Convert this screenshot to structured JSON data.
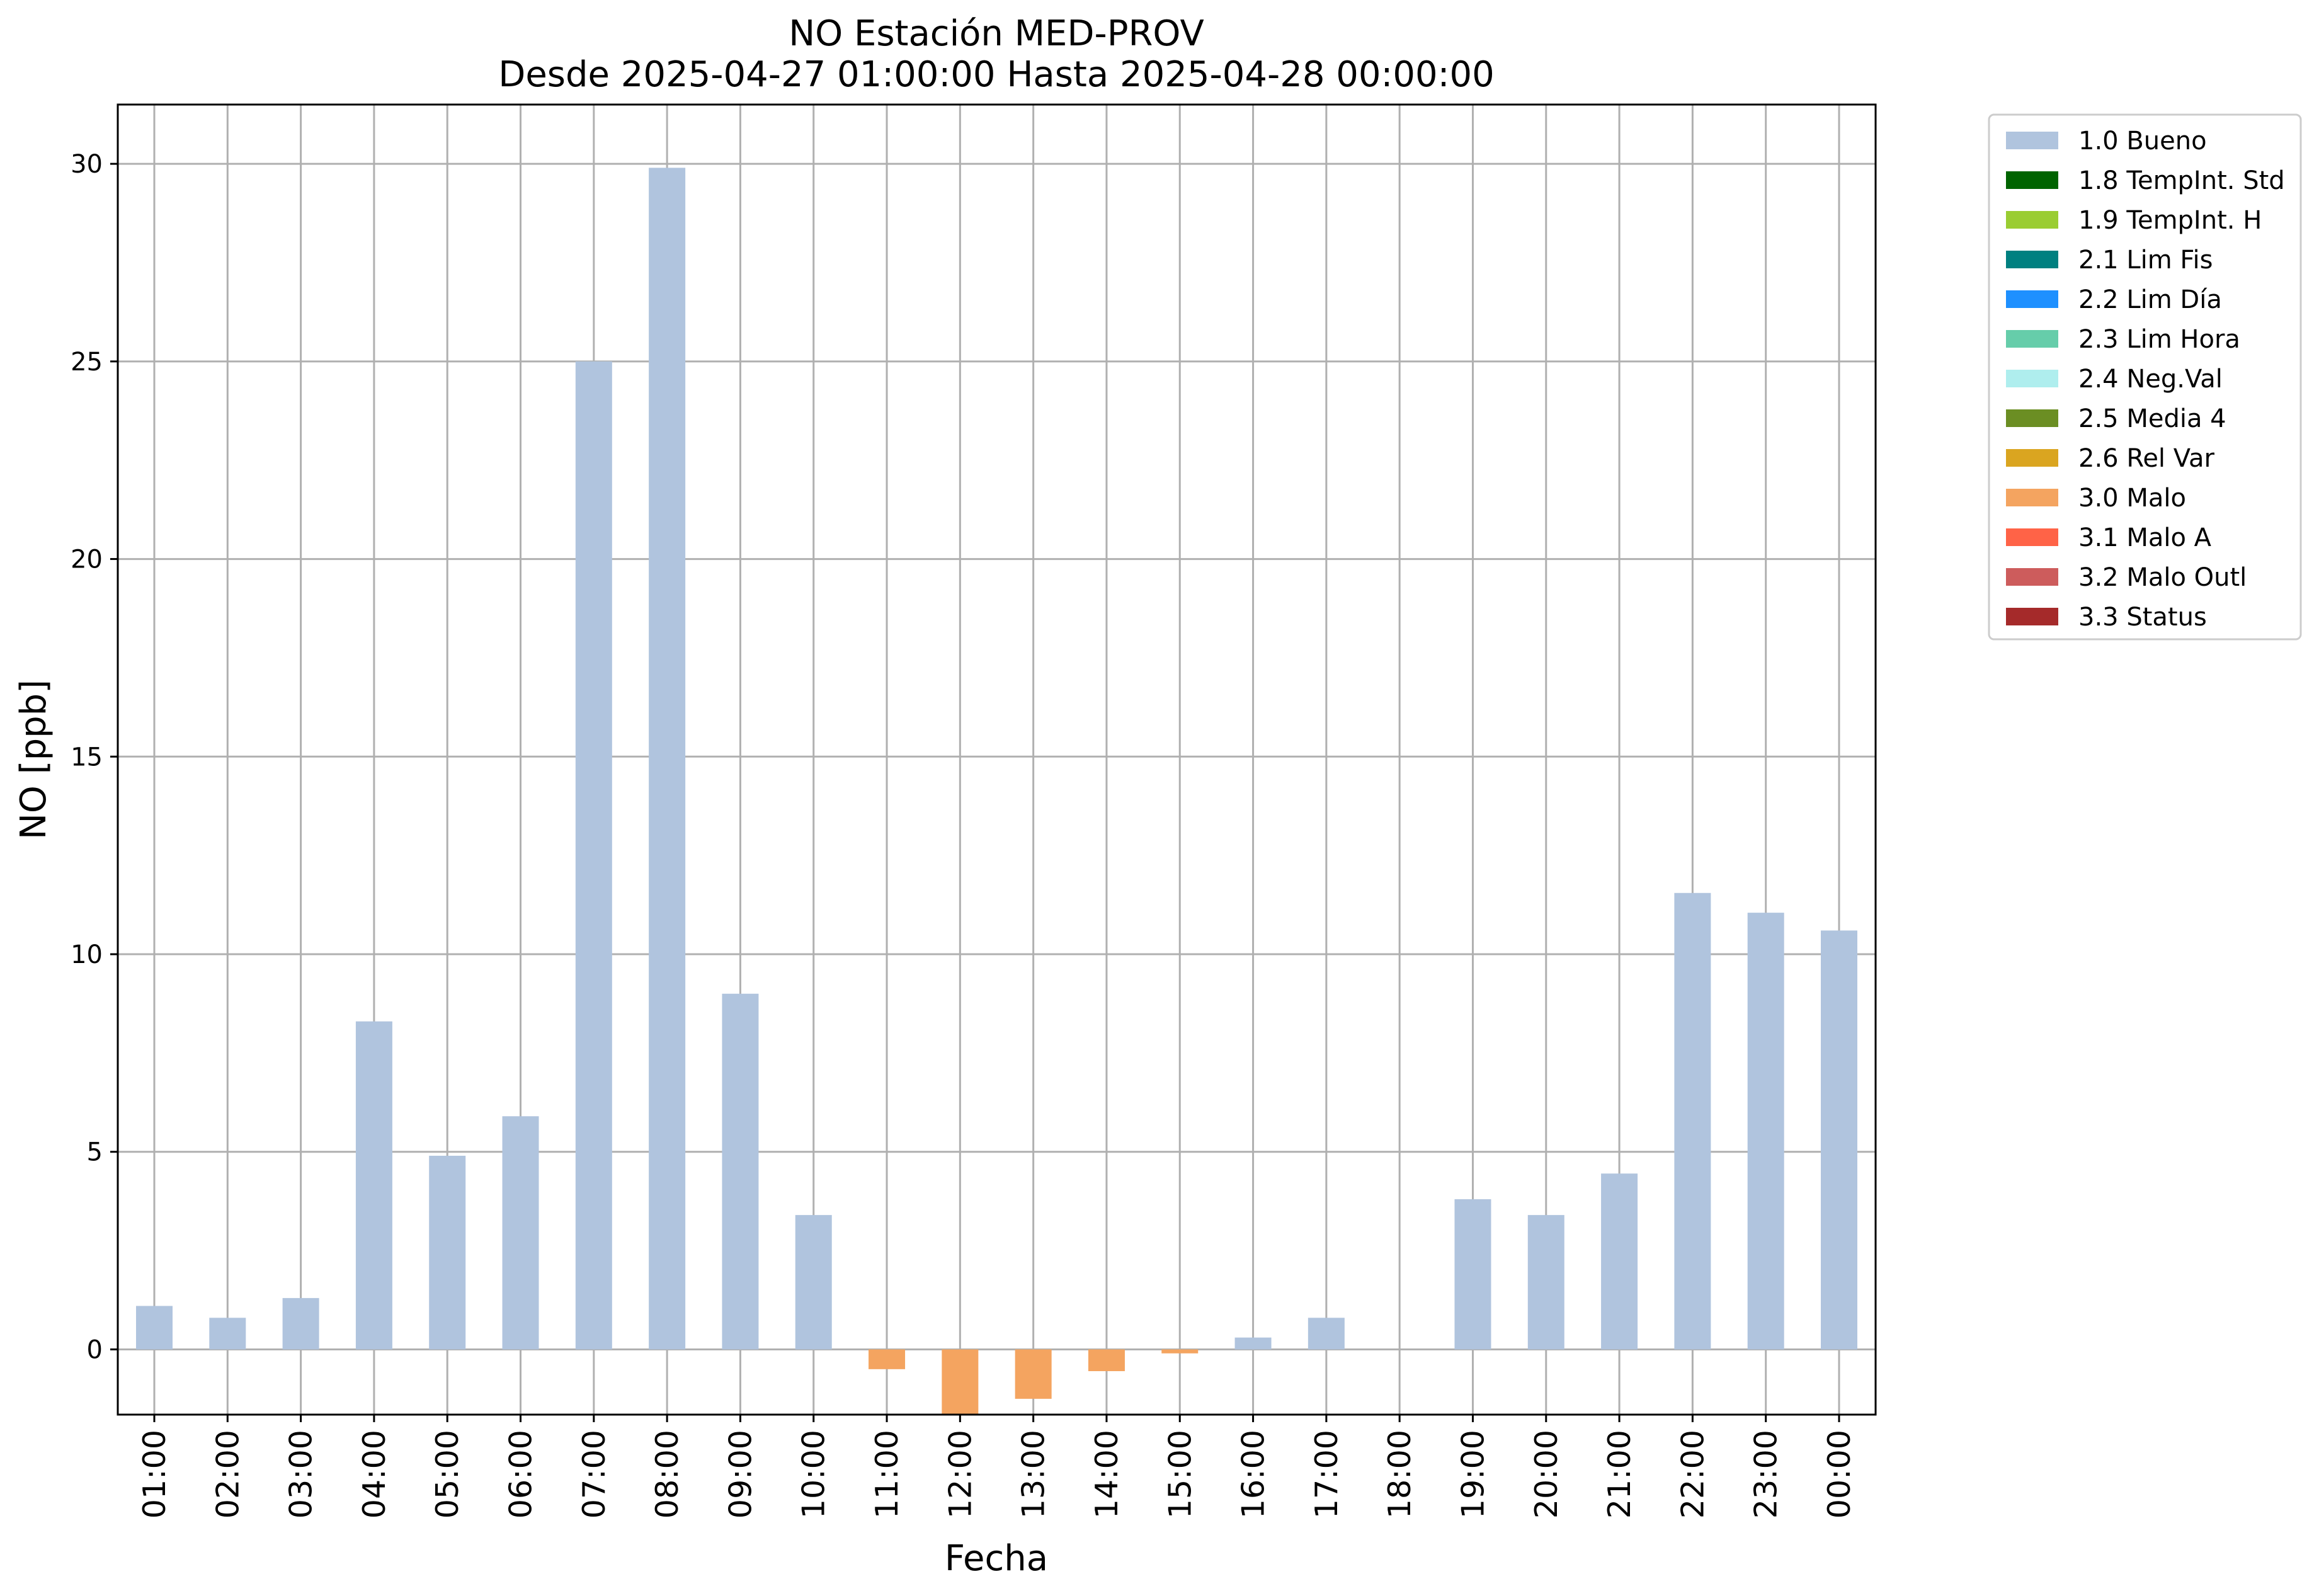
{
  "chart_data": {
    "type": "bar",
    "title": "NO Estación MED-PROV",
    "subtitle": "Desde 2025-04-27 01:00:00 Hasta 2025-04-28 00:00:00",
    "xlabel": "Fecha",
    "ylabel": "NO [ppb]",
    "ylim": [
      -1.65,
      31.5
    ],
    "yticks": [
      "0",
      "5",
      "10",
      "15",
      "20",
      "25",
      "30"
    ],
    "grid": true,
    "legend_position": "outside-right-top",
    "categories": [
      "01:00",
      "02:00",
      "03:00",
      "04:00",
      "05:00",
      "06:00",
      "07:00",
      "08:00",
      "09:00",
      "10:00",
      "11:00",
      "12:00",
      "13:00",
      "14:00",
      "15:00",
      "16:00",
      "17:00",
      "18:00",
      "19:00",
      "20:00",
      "21:00",
      "22:00",
      "23:00",
      "00:00"
    ],
    "values": [
      1.1,
      0.8,
      1.3,
      8.3,
      4.9,
      5.9,
      25.0,
      29.9,
      9.0,
      3.4,
      -0.5,
      -1.8,
      -1.25,
      -0.55,
      -0.1,
      0.3,
      0.8,
      null,
      3.8,
      3.4,
      4.45,
      11.55,
      11.05,
      10.6
    ],
    "flags": [
      "1.0 Bueno",
      "1.0 Bueno",
      "1.0 Bueno",
      "1.0 Bueno",
      "1.0 Bueno",
      "1.0 Bueno",
      "1.0 Bueno",
      "1.0 Bueno",
      "1.0 Bueno",
      "1.0 Bueno",
      "3.0 Malo",
      "3.0 Malo",
      "3.0 Malo",
      "3.0 Malo",
      "3.0 Malo",
      "1.0 Bueno",
      "1.0 Bueno",
      null,
      "1.0 Bueno",
      "1.0 Bueno",
      "1.0 Bueno",
      "1.0 Bueno",
      "1.0 Bueno",
      "1.0 Bueno"
    ],
    "legend": [
      {
        "label": "1.0 Bueno",
        "color": "#b0c4de"
      },
      {
        "label": "1.8 TempInt. Std",
        "color": "#006400"
      },
      {
        "label": "1.9 TempInt. H",
        "color": "#9acd32"
      },
      {
        "label": "2.1 Lim Fis",
        "color": "#008080"
      },
      {
        "label": "2.2 Lim Día",
        "color": "#1e90ff"
      },
      {
        "label": "2.3 Lim Hora",
        "color": "#66cdaa"
      },
      {
        "label": "2.4 Neg.Val",
        "color": "#afeeee"
      },
      {
        "label": "2.5 Media 4",
        "color": "#6b8e23"
      },
      {
        "label": "2.6 Rel Var",
        "color": "#daa520"
      },
      {
        "label": "3.0 Malo",
        "color": "#f4a460"
      },
      {
        "label": "3.1 Malo A",
        "color": "#ff6347"
      },
      {
        "label": "3.2 Malo Outl",
        "color": "#cd5c5c"
      },
      {
        "label": "3.3 Status",
        "color": "#a52a2a"
      }
    ]
  }
}
